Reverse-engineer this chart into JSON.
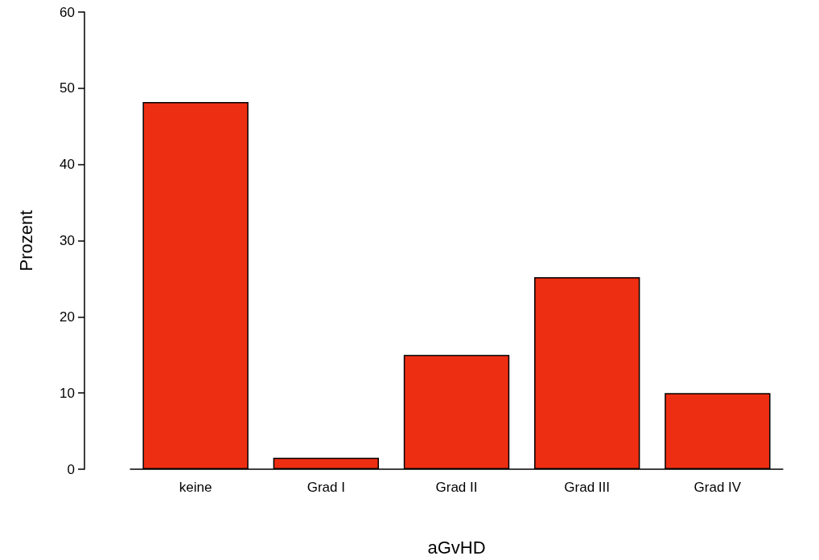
{
  "chart_data": {
    "type": "bar",
    "xlabel": "aGvHD",
    "ylabel": "Prozent",
    "categories": [
      "keine",
      "Grad I",
      "Grad II",
      "Grad III",
      "Grad IV"
    ],
    "values": [
      48.2,
      1.5,
      15.0,
      25.2,
      10.0
    ],
    "color": "#ee2e12",
    "ylim": [
      0,
      60
    ],
    "yticks": [
      0,
      10,
      20,
      30,
      40,
      50,
      60
    ],
    "grid": false
  }
}
